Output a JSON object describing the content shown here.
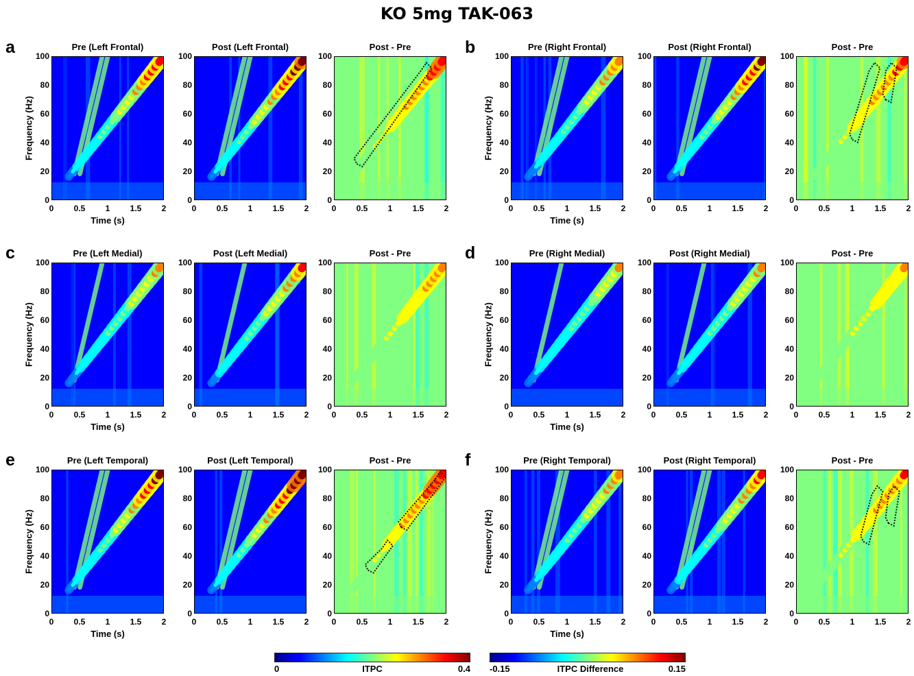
{
  "title": "KO 5mg TAK-063",
  "colors": {
    "jet": [
      "#00008f",
      "#0000ff",
      "#0080ff",
      "#00ffff",
      "#80ff80",
      "#ffff00",
      "#ff8000",
      "#ff0000",
      "#800000"
    ]
  },
  "chart_data": [
    {
      "type": "heatmap",
      "panel": "a",
      "title": "Pre (Left Frontal)",
      "measure": "ITPC",
      "clim": [
        0,
        0.4
      ],
      "xlabel": "Time (s)",
      "ylabel": "Frequency (Hz)",
      "xlim": [
        0,
        2
      ],
      "ylim": [
        0,
        100
      ],
      "xticks": [
        "0",
        "0.5",
        "1",
        "1.5",
        "2"
      ],
      "yticks": [
        "0",
        "20",
        "40",
        "60",
        "80",
        "100"
      ],
      "sweep": {
        "time_start": 0.3,
        "freq_start": 16,
        "time_end": 2,
        "freq_end": 100
      },
      "peak": 0.38,
      "harmonics": [
        {
          "time_start": 0.4,
          "time_end": 0.9
        },
        {
          "time_start": 0.5,
          "time_end": 1.0
        }
      ],
      "sig_clusters": []
    },
    {
      "type": "heatmap",
      "panel": "a",
      "title": "Post  (Left Frontal)",
      "measure": "ITPC",
      "clim": [
        0,
        0.4
      ],
      "xlim": [
        0,
        2
      ],
      "ylim": [
        0,
        100
      ],
      "xticks": [
        "0",
        "0.5",
        "1",
        "1.5",
        "2"
      ],
      "yticks": [
        "0",
        "20",
        "40",
        "60",
        "80",
        "100"
      ],
      "sweep": {
        "time_start": 0.3,
        "freq_start": 16,
        "time_end": 2,
        "freq_end": 100
      },
      "peak": 0.42,
      "harmonics": [
        {
          "time_start": 0.4,
          "time_end": 0.9
        },
        {
          "time_start": 0.5,
          "time_end": 1.0
        }
      ],
      "sig_clusters": []
    },
    {
      "type": "heatmap",
      "panel": "a",
      "title": "Post - Pre",
      "measure": "ITPC Difference",
      "clim": [
        -0.15,
        0.15
      ],
      "xlim": [
        0,
        2
      ],
      "ylim": [
        0,
        100
      ],
      "xticks": [
        "0",
        "0.5",
        "1",
        "1.5",
        "2"
      ],
      "yticks": [
        "0",
        "20",
        "40",
        "60",
        "80",
        "100"
      ],
      "sweep": {
        "time_start": 0.3,
        "freq_start": 16,
        "time_end": 2,
        "freq_end": 100
      },
      "peak": 0.12,
      "sig_clusters": [
        {
          "time": [
            0.4,
            1.7
          ],
          "freq": [
            25,
            95
          ]
        }
      ]
    },
    {
      "type": "heatmap",
      "panel": "b",
      "title": "Pre (Right Frontal)",
      "measure": "ITPC",
      "clim": [
        0,
        0.4
      ],
      "xlabel": "Time (s)",
      "ylabel": "Frequency (Hz)",
      "xlim": [
        0,
        2
      ],
      "ylim": [
        0,
        100
      ],
      "xticks": [
        "0",
        "0.5",
        "1",
        "1.5",
        "2"
      ],
      "yticks": [
        "0",
        "20",
        "40",
        "60",
        "80",
        "100"
      ],
      "sweep": {
        "time_start": 0.3,
        "freq_start": 16,
        "time_end": 2,
        "freq_end": 100
      },
      "peak": 0.33,
      "harmonics": [
        {
          "time_start": 0.4,
          "time_end": 0.9
        },
        {
          "time_start": 0.5,
          "time_end": 1.0
        }
      ],
      "sig_clusters": []
    },
    {
      "type": "heatmap",
      "panel": "b",
      "title": "Post (Right Frontal)",
      "measure": "ITPC",
      "clim": [
        0,
        0.4
      ],
      "xlim": [
        0,
        2
      ],
      "ylim": [
        0,
        100
      ],
      "xticks": [
        "0",
        "0.5",
        "1",
        "1.5",
        "2"
      ],
      "yticks": [
        "0",
        "20",
        "40",
        "60",
        "80",
        "100"
      ],
      "sweep": {
        "time_start": 0.3,
        "freq_start": 16,
        "time_end": 2,
        "freq_end": 100
      },
      "peak": 0.4,
      "harmonics": [
        {
          "time_start": 0.4,
          "time_end": 0.9
        },
        {
          "time_start": 0.5,
          "time_end": 1.0
        }
      ],
      "sig_clusters": []
    },
    {
      "type": "heatmap",
      "panel": "b",
      "title": "Post - Pre",
      "measure": "ITPC Difference",
      "clim": [
        -0.15,
        0.15
      ],
      "xlim": [
        0,
        2
      ],
      "ylim": [
        0,
        100
      ],
      "xticks": [
        "0",
        "0.5",
        "1",
        "1.5",
        "2"
      ],
      "yticks": [
        "0",
        "20",
        "40",
        "60",
        "80",
        "100"
      ],
      "sweep": {
        "time_start": 0.3,
        "freq_start": 16,
        "time_end": 2,
        "freq_end": 100
      },
      "peak": 0.11,
      "sig_clusters": [
        {
          "time": [
            1.0,
            1.45
          ],
          "freq": [
            42,
            95
          ]
        },
        {
          "time": [
            1.6,
            1.75
          ],
          "freq": [
            70,
            95
          ]
        }
      ]
    },
    {
      "type": "heatmap",
      "panel": "c",
      "title": "Pre (Left Medial)",
      "measure": "ITPC",
      "clim": [
        0,
        0.4
      ],
      "xlabel": "Time (s)",
      "ylabel": "Frequency (Hz)",
      "xlim": [
        0,
        2
      ],
      "ylim": [
        0,
        100
      ],
      "xticks": [
        "0",
        "0.5",
        "1",
        "1.5",
        "2"
      ],
      "yticks": [
        "0",
        "20",
        "40",
        "60",
        "80",
        "100"
      ],
      "sweep": {
        "time_start": 0.3,
        "freq_start": 16,
        "time_end": 2,
        "freq_end": 100
      },
      "peak": 0.3,
      "harmonics": [
        {
          "time_start": 0.4,
          "time_end": 0.9
        }
      ],
      "sig_clusters": []
    },
    {
      "type": "heatmap",
      "panel": "c",
      "title": "Post (Left Medial)",
      "measure": "ITPC",
      "clim": [
        0,
        0.4
      ],
      "xlim": [
        0,
        2
      ],
      "ylim": [
        0,
        100
      ],
      "xticks": [
        "0",
        "0.5",
        "1",
        "1.5",
        "2"
      ],
      "yticks": [
        "0",
        "20",
        "40",
        "60",
        "80",
        "100"
      ],
      "sweep": {
        "time_start": 0.3,
        "freq_start": 16,
        "time_end": 2,
        "freq_end": 100
      },
      "peak": 0.34,
      "harmonics": [
        {
          "time_start": 0.4,
          "time_end": 0.9
        }
      ],
      "sig_clusters": []
    },
    {
      "type": "heatmap",
      "panel": "c",
      "title": "Post - Pre",
      "measure": "ITPC Difference",
      "clim": [
        -0.15,
        0.15
      ],
      "xlim": [
        0,
        2
      ],
      "ylim": [
        0,
        100
      ],
      "xticks": [
        "0",
        "0.5",
        "1",
        "1.5",
        "2"
      ],
      "yticks": [
        "0",
        "20",
        "40",
        "60",
        "80",
        "100"
      ],
      "sweep": {
        "time_start": 0.3,
        "freq_start": 16,
        "time_end": 2,
        "freq_end": 100
      },
      "peak": 0.08,
      "sig_clusters": []
    },
    {
      "type": "heatmap",
      "panel": "d",
      "title": "Pre (Right Medial)",
      "measure": "ITPC",
      "clim": [
        0,
        0.4
      ],
      "xlabel": "Time (s)",
      "ylabel": "Frequency (Hz)",
      "xlim": [
        0,
        2
      ],
      "ylim": [
        0,
        100
      ],
      "xticks": [
        "0",
        "0.5",
        "1",
        "1.5",
        "2"
      ],
      "yticks": [
        "0",
        "20",
        "40",
        "60",
        "80",
        "100"
      ],
      "sweep": {
        "time_start": 0.3,
        "freq_start": 16,
        "time_end": 2,
        "freq_end": 100
      },
      "peak": 0.28,
      "harmonics": [
        {
          "time_start": 0.4,
          "time_end": 0.9
        }
      ],
      "sig_clusters": []
    },
    {
      "type": "heatmap",
      "panel": "d",
      "title": "Post (Right Medial)",
      "measure": "ITPC",
      "clim": [
        0,
        0.4
      ],
      "xlim": [
        0,
        2
      ],
      "ylim": [
        0,
        100
      ],
      "xticks": [
        "0",
        "0.5",
        "1",
        "1.5",
        "2"
      ],
      "yticks": [
        "0",
        "20",
        "40",
        "60",
        "80",
        "100"
      ],
      "sweep": {
        "time_start": 0.3,
        "freq_start": 16,
        "time_end": 2,
        "freq_end": 100
      },
      "peak": 0.3,
      "harmonics": [
        {
          "time_start": 0.4,
          "time_end": 0.9
        }
      ],
      "sig_clusters": []
    },
    {
      "type": "heatmap",
      "panel": "d",
      "title": "Post - Pre",
      "measure": "ITPC Difference",
      "clim": [
        -0.15,
        0.15
      ],
      "xlim": [
        0,
        2
      ],
      "ylim": [
        0,
        100
      ],
      "xticks": [
        "0",
        "0.5",
        "1",
        "1.5",
        "2"
      ],
      "yticks": [
        "0",
        "20",
        "40",
        "60",
        "80",
        "100"
      ],
      "sweep": {
        "time_start": 0.3,
        "freq_start": 16,
        "time_end": 2,
        "freq_end": 100
      },
      "peak": 0.06,
      "sig_clusters": []
    },
    {
      "type": "heatmap",
      "panel": "e",
      "title": "Pre (Left Temporal)",
      "measure": "ITPC",
      "clim": [
        0,
        0.4
      ],
      "xlabel": "Time (s)",
      "ylabel": "Frequency (Hz)",
      "xlim": [
        0,
        2
      ],
      "ylim": [
        0,
        100
      ],
      "xticks": [
        "0",
        "0.5",
        "1",
        "1.5",
        "2"
      ],
      "yticks": [
        "0",
        "20",
        "40",
        "60",
        "80",
        "100"
      ],
      "sweep": {
        "time_start": 0.3,
        "freq_start": 16,
        "time_end": 2,
        "freq_end": 100
      },
      "peak": 0.4,
      "harmonics": [
        {
          "time_start": 0.4,
          "time_end": 0.9
        },
        {
          "time_start": 0.5,
          "time_end": 1.0
        }
      ],
      "sig_clusters": []
    },
    {
      "type": "heatmap",
      "panel": "e",
      "title": "Post (Left Temporal)",
      "measure": "ITPC",
      "clim": [
        0,
        0.4
      ],
      "xlim": [
        0,
        2
      ],
      "ylim": [
        0,
        100
      ],
      "xticks": [
        "0",
        "0.5",
        "1",
        "1.5",
        "2"
      ],
      "yticks": [
        "0",
        "20",
        "40",
        "60",
        "80",
        "100"
      ],
      "sweep": {
        "time_start": 0.3,
        "freq_start": 16,
        "time_end": 2,
        "freq_end": 100
      },
      "peak": 0.45,
      "harmonics": [
        {
          "time_start": 0.4,
          "time_end": 0.9
        },
        {
          "time_start": 0.5,
          "time_end": 1.0
        }
      ],
      "sig_clusters": []
    },
    {
      "type": "heatmap",
      "panel": "e",
      "title": "Post - Pre",
      "measure": "ITPC Difference",
      "clim": [
        -0.15,
        0.15
      ],
      "xlim": [
        0,
        2
      ],
      "ylim": [
        0,
        100
      ],
      "xticks": [
        "0",
        "0.5",
        "1",
        "1.5",
        "2"
      ],
      "yticks": [
        "0",
        "20",
        "40",
        "60",
        "80",
        "100"
      ],
      "sweep": {
        "time_start": 0.3,
        "freq_start": 16,
        "time_end": 2,
        "freq_end": 100
      },
      "peak": 0.13,
      "sig_clusters": [
        {
          "time": [
            0.6,
            1.0
          ],
          "freq": [
            30,
            50
          ]
        },
        {
          "time": [
            1.2,
            1.95
          ],
          "freq": [
            60,
            98
          ]
        }
      ]
    },
    {
      "type": "heatmap",
      "panel": "f",
      "title": "Pre (Right Temporal)",
      "measure": "ITPC",
      "clim": [
        0,
        0.4
      ],
      "xlabel": "Time (s)",
      "ylabel": "Frequency (Hz)",
      "xlim": [
        0,
        2
      ],
      "ylim": [
        0,
        100
      ],
      "xticks": [
        "0",
        "0.5",
        "1",
        "1.5",
        "2"
      ],
      "yticks": [
        "0",
        "20",
        "40",
        "60",
        "80",
        "100"
      ],
      "sweep": {
        "time_start": 0.3,
        "freq_start": 16,
        "time_end": 2,
        "freq_end": 100
      },
      "peak": 0.32,
      "harmonics": [
        {
          "time_start": 0.4,
          "time_end": 0.9
        },
        {
          "time_start": 0.5,
          "time_end": 1.0
        }
      ],
      "sig_clusters": []
    },
    {
      "type": "heatmap",
      "panel": "f",
      "title": "Post (Right Temporal)",
      "measure": "ITPC",
      "clim": [
        0,
        0.4
      ],
      "xlim": [
        0,
        2
      ],
      "ylim": [
        0,
        100
      ],
      "xticks": [
        "0",
        "0.5",
        "1",
        "1.5",
        "2"
      ],
      "yticks": [
        "0",
        "20",
        "40",
        "60",
        "80",
        "100"
      ],
      "sweep": {
        "time_start": 0.3,
        "freq_start": 16,
        "time_end": 2,
        "freq_end": 100
      },
      "peak": 0.35,
      "harmonics": [
        {
          "time_start": 0.4,
          "time_end": 0.9
        },
        {
          "time_start": 0.5,
          "time_end": 1.0
        }
      ],
      "sig_clusters": []
    },
    {
      "type": "heatmap",
      "panel": "f",
      "title": "Post - Pre",
      "measure": "ITPC Difference",
      "clim": [
        -0.15,
        0.15
      ],
      "xlim": [
        0,
        2
      ],
      "ylim": [
        0,
        100
      ],
      "xticks": [
        "0",
        "0.5",
        "1",
        "1.5",
        "2"
      ],
      "yticks": [
        "0",
        "20",
        "40",
        "60",
        "80",
        "100"
      ],
      "sweep": {
        "time_start": 0.3,
        "freq_start": 16,
        "time_end": 2,
        "freq_end": 100
      },
      "peak": 0.1,
      "sig_clusters": [
        {
          "time": [
            1.2,
            1.5
          ],
          "freq": [
            50,
            88
          ]
        },
        {
          "time": [
            1.65,
            1.8
          ],
          "freq": [
            63,
            88
          ]
        }
      ]
    }
  ],
  "colorbars": [
    {
      "label": "ITPC",
      "min_label": "0",
      "max_label": "0.4",
      "range": [
        0,
        0.4
      ]
    },
    {
      "label": "ITPC Difference",
      "min_label": "-0.15",
      "max_label": "0.15",
      "range": [
        -0.15,
        0.15
      ]
    }
  ]
}
